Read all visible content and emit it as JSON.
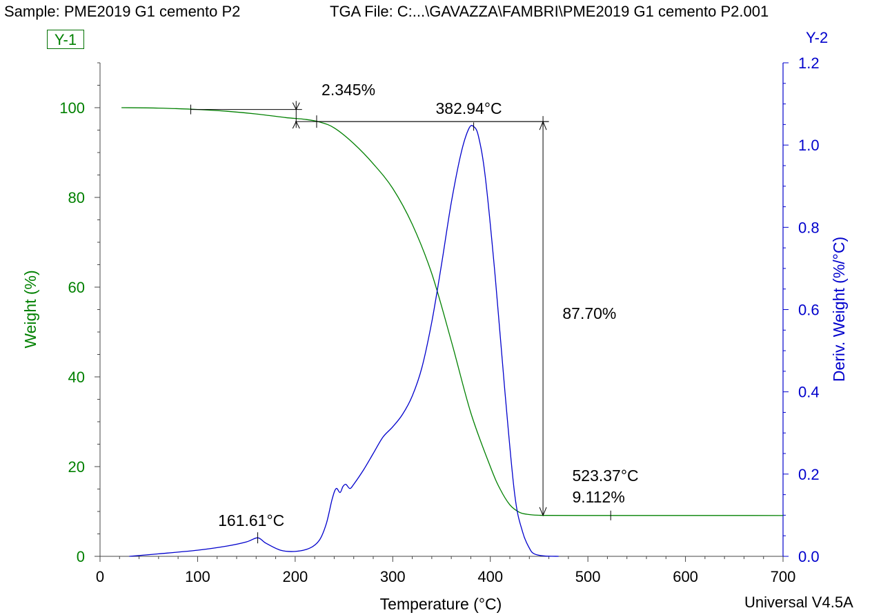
{
  "header": {
    "sample": "Sample: PME2019 G1 cemento P2",
    "tga_file": "TGA File: C:...\\GAVAZZA\\FAMBRI\\PME2019 G1 cemento P2.001",
    "y1_tag": "Y-1",
    "y2_tag": "Y-2"
  },
  "footer": {
    "version": "Universal V4.5A"
  },
  "colors": {
    "weight": "#008000",
    "deriv": "#0000cc",
    "text": "#000000"
  },
  "chart_data": {
    "type": "line",
    "xlabel": "Temperature (°C)",
    "ylabel": "Weight (%)",
    "y2label": "Deriv. Weight (%/°C)",
    "xlim": [
      0,
      700
    ],
    "ylim": [
      0,
      110
    ],
    "y2lim": [
      0,
      1.2
    ],
    "x_ticks": [
      0,
      100,
      200,
      300,
      400,
      500,
      600,
      700
    ],
    "y_ticks": [
      0,
      20,
      40,
      60,
      80,
      100
    ],
    "y2_ticks": [
      "0.0",
      "0.2",
      "0.4",
      "0.6",
      "0.8",
      "1.0",
      "1.2"
    ],
    "series": [
      {
        "name": "Weight (%)",
        "axis": "y1",
        "x": [
          22,
          60,
          100,
          130,
          160,
          190,
          210,
          225,
          240,
          260,
          280,
          300,
          320,
          340,
          360,
          380,
          400,
          410,
          420,
          430,
          440,
          450,
          460,
          500,
          550,
          600,
          650,
          700
        ],
        "y": [
          100.0,
          99.9,
          99.6,
          99.2,
          98.6,
          97.8,
          97.4,
          96.8,
          95.5,
          92.0,
          87.5,
          82.0,
          74.0,
          63.0,
          48.0,
          32.0,
          20.0,
          15.0,
          11.5,
          9.8,
          9.3,
          9.15,
          9.12,
          9.11,
          9.11,
          9.11,
          9.11,
          9.1
        ]
      },
      {
        "name": "Deriv. Weight (%/°C)",
        "axis": "y2",
        "x": [
          30,
          60,
          100,
          130,
          150,
          161.61,
          170,
          185,
          200,
          215,
          225,
          232,
          238,
          242,
          246,
          249,
          252,
          256,
          260,
          270,
          280,
          290,
          300,
          310,
          320,
          330,
          340,
          350,
          360,
          370,
          378,
          382.94,
          388,
          395,
          405,
          415,
          425,
          433,
          440,
          445,
          455,
          470
        ],
        "y": [
          0.0,
          0.006,
          0.015,
          0.025,
          0.035,
          0.045,
          0.032,
          0.015,
          0.012,
          0.02,
          0.04,
          0.08,
          0.14,
          0.165,
          0.155,
          0.17,
          0.175,
          0.165,
          0.175,
          0.21,
          0.25,
          0.29,
          0.315,
          0.345,
          0.39,
          0.46,
          0.57,
          0.71,
          0.86,
          0.98,
          1.04,
          1.045,
          1.02,
          0.92,
          0.68,
          0.4,
          0.15,
          0.06,
          0.02,
          0.006,
          0.001,
          0.0
        ]
      }
    ],
    "annotations": {
      "initial_loss": "2.345%",
      "peak_temp": "382.94°C",
      "main_loss": "87.70%",
      "end_temp": "523.37°C",
      "residue": "9.112%",
      "small_peak": "161.61°C"
    }
  }
}
